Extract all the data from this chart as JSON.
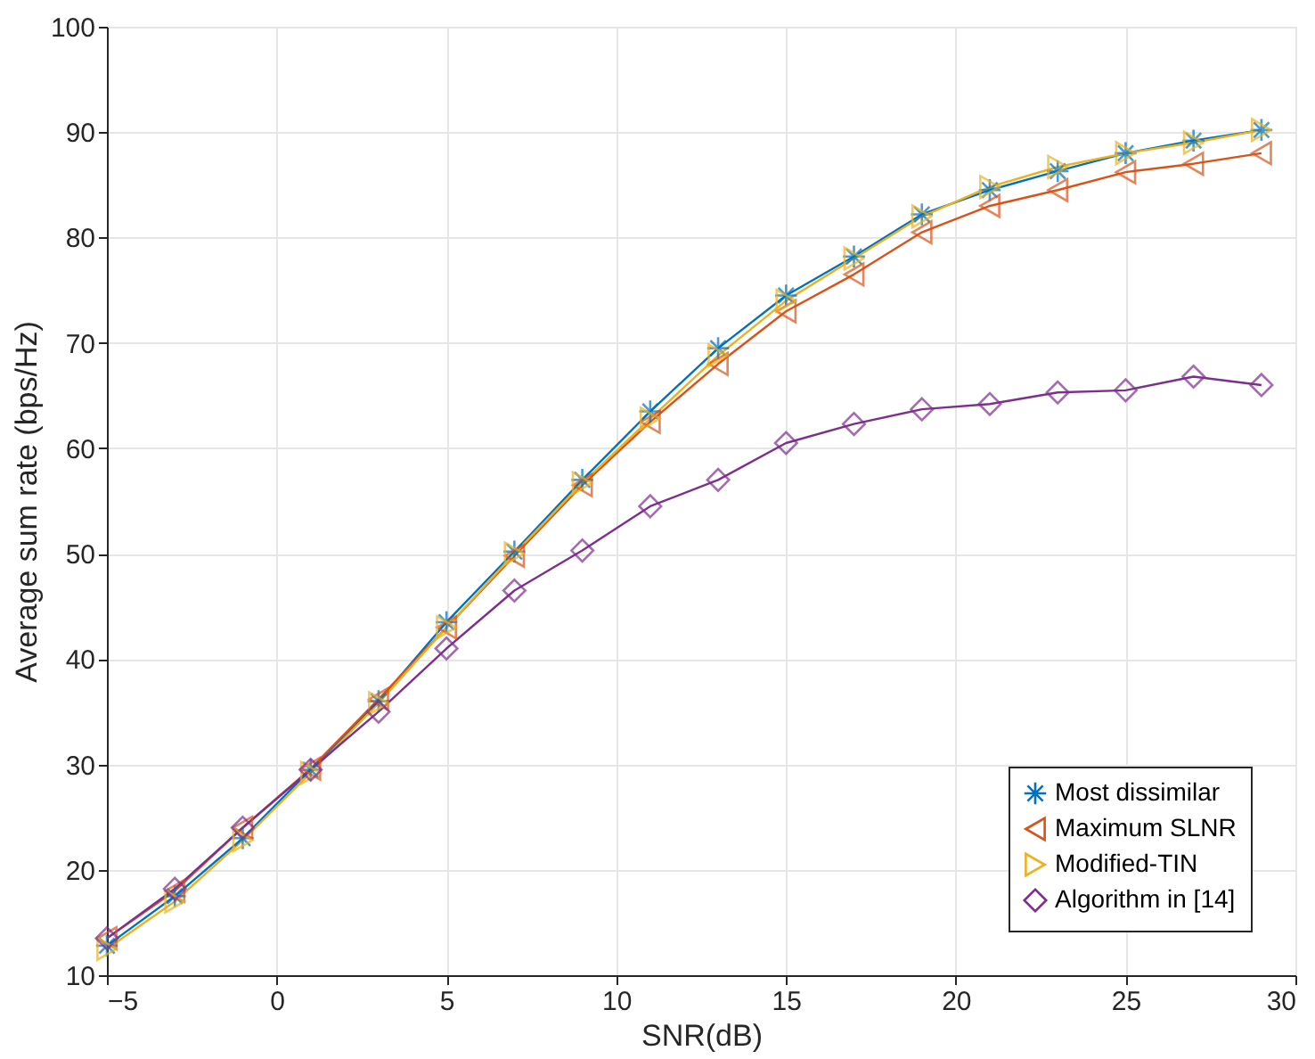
{
  "chart_data": {
    "type": "line",
    "xlabel": "SNR(dB)",
    "ylabel": "Average sum rate (bps/Hz)",
    "x": [
      -5,
      -3,
      -1,
      1,
      3,
      5,
      7,
      9,
      11,
      13,
      15,
      17,
      19,
      21,
      23,
      25,
      27,
      29
    ],
    "xlim": [
      -5,
      30
    ],
    "xticks": [
      -5,
      0,
      5,
      10,
      15,
      20,
      25,
      30
    ],
    "ylim": [
      10,
      100
    ],
    "yticks": [
      10,
      20,
      30,
      40,
      50,
      60,
      70,
      80,
      90,
      100
    ],
    "grid": true,
    "legend": "bottom right",
    "line_style": "solid",
    "series": [
      {
        "name": "Most dissimilar",
        "color": "#0072bd",
        "marker": "cross",
        "values": [
          12.8,
          17.5,
          23,
          29.5,
          36,
          43.5,
          50.2,
          57,
          63.5,
          69.5,
          74.5,
          78.2,
          82.2,
          84.5,
          86.3,
          88,
          89.2,
          90.2
        ]
      },
      {
        "name": "Maximum SLNR",
        "color": "#d95319",
        "marker": "triangle-left",
        "values": [
          13.5,
          18,
          24,
          29.6,
          36.2,
          43,
          49.8,
          56.5,
          62.5,
          68,
          73,
          76.5,
          80.5,
          83,
          84.5,
          86.2,
          87,
          88
        ]
      },
      {
        "name": "Modified-TIN",
        "color": "#edb120",
        "marker": "triangle-right",
        "values": [
          12.5,
          17,
          22.8,
          29.2,
          35.8,
          43,
          50,
          56.7,
          62.8,
          68.8,
          74,
          78,
          82,
          84.8,
          86.7,
          88,
          89,
          90.2
        ]
      },
      {
        "name": "Algorithm in [14]",
        "color": "#7e2f8e",
        "marker": "diamond",
        "values": [
          13.5,
          18.2,
          24,
          29.5,
          35,
          41,
          46.5,
          50.3,
          54.5,
          57,
          60.5,
          62.3,
          63.7,
          64.2,
          65.3,
          65.5,
          66.8,
          66
        ]
      }
    ]
  }
}
